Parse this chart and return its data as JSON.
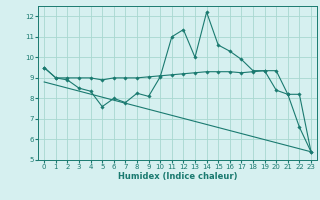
{
  "xlabel": "Humidex (Indice chaleur)",
  "bg_color": "#d6f0f0",
  "line_color": "#1a7a70",
  "grid_color": "#a8d8d0",
  "xlim": [
    -0.5,
    23.5
  ],
  "ylim": [
    5,
    12.5
  ],
  "yticks": [
    5,
    6,
    7,
    8,
    9,
    10,
    11,
    12
  ],
  "xticks": [
    0,
    1,
    2,
    3,
    4,
    5,
    6,
    7,
    8,
    9,
    10,
    11,
    12,
    13,
    14,
    15,
    16,
    17,
    18,
    19,
    20,
    21,
    22,
    23
  ],
  "series1_x": [
    0,
    1,
    2,
    3,
    4,
    5,
    6,
    7,
    8,
    9,
    10,
    11,
    12,
    13,
    14,
    15,
    16,
    17,
    18,
    19,
    20,
    21,
    22,
    23
  ],
  "series1_y": [
    9.5,
    9.0,
    9.0,
    9.0,
    9.0,
    8.9,
    9.0,
    9.0,
    9.0,
    9.05,
    9.1,
    9.15,
    9.2,
    9.25,
    9.3,
    9.3,
    9.3,
    9.25,
    9.3,
    9.35,
    9.35,
    8.2,
    8.2,
    5.4
  ],
  "series2_x": [
    0,
    1,
    2,
    3,
    4,
    5,
    6,
    7,
    8,
    9,
    10,
    11,
    12,
    13,
    14,
    15,
    16,
    17,
    18,
    19,
    20,
    21,
    22,
    23
  ],
  "series2_y": [
    9.5,
    9.0,
    8.9,
    8.5,
    8.35,
    7.6,
    8.0,
    7.8,
    8.25,
    8.1,
    9.05,
    11.0,
    11.35,
    10.0,
    12.2,
    10.6,
    10.3,
    9.9,
    9.35,
    9.35,
    8.4,
    8.2,
    6.6,
    5.4
  ],
  "series3_x": [
    0,
    23
  ],
  "series3_y": [
    8.8,
    5.4
  ],
  "marker": "D",
  "markersize": 1.8,
  "linewidth": 0.8,
  "tick_fontsize": 5.0,
  "xlabel_fontsize": 6.0
}
